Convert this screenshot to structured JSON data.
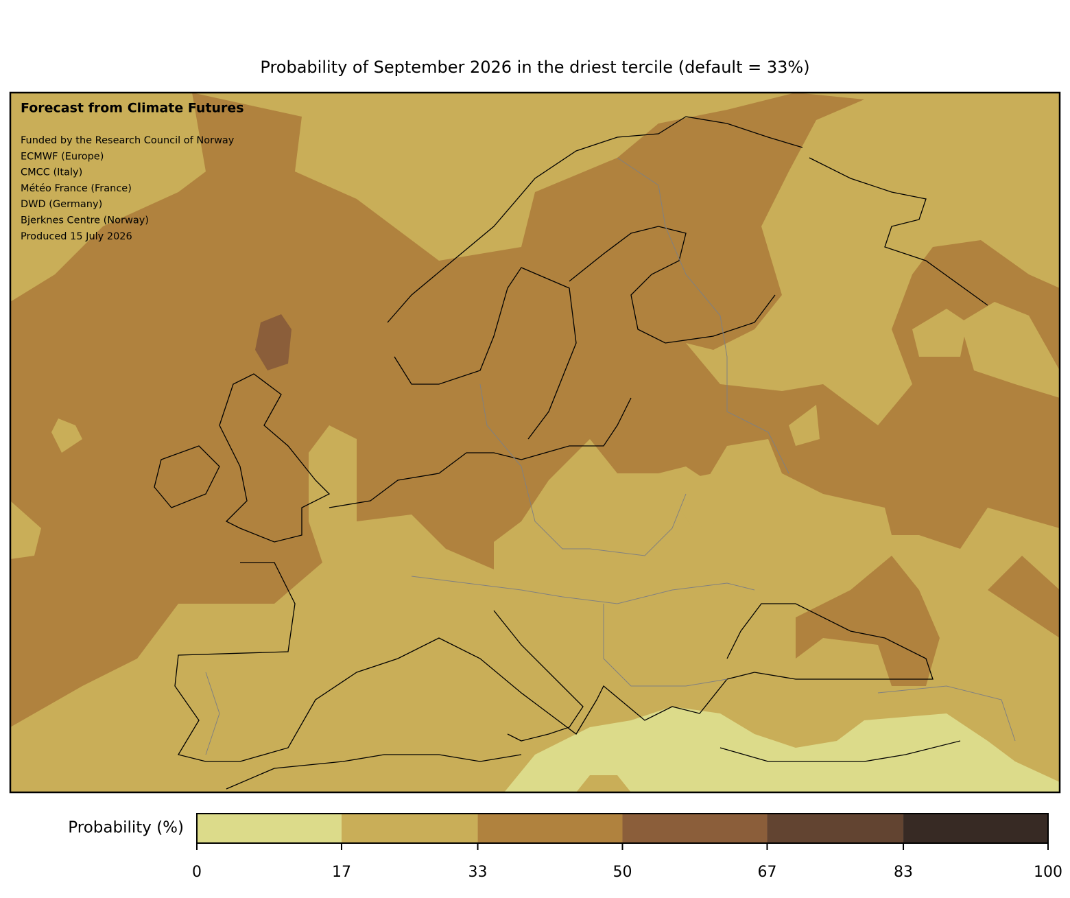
{
  "title": "Probability of September 2026 in the driest tercile (default = 33%)",
  "annotation": {
    "heading": "Forecast from Climate Futures",
    "lines": [
      "Funded by the Research Council of Norway",
      "ECMWF (Europe)",
      "CMCC (Italy)",
      "Météo France (France)",
      "DWD (Germany)",
      "Bjerknes Centre (Norway)",
      "Produced 15 July 2026"
    ]
  },
  "colorbar": {
    "label": "Probability (%)",
    "ticks": [
      0,
      17,
      33,
      50,
      67,
      83,
      100
    ],
    "colors": [
      "#dcdb8a",
      "#c9ae58",
      "#b0823e",
      "#8b5e3a",
      "#624431",
      "#372a24"
    ]
  }
}
